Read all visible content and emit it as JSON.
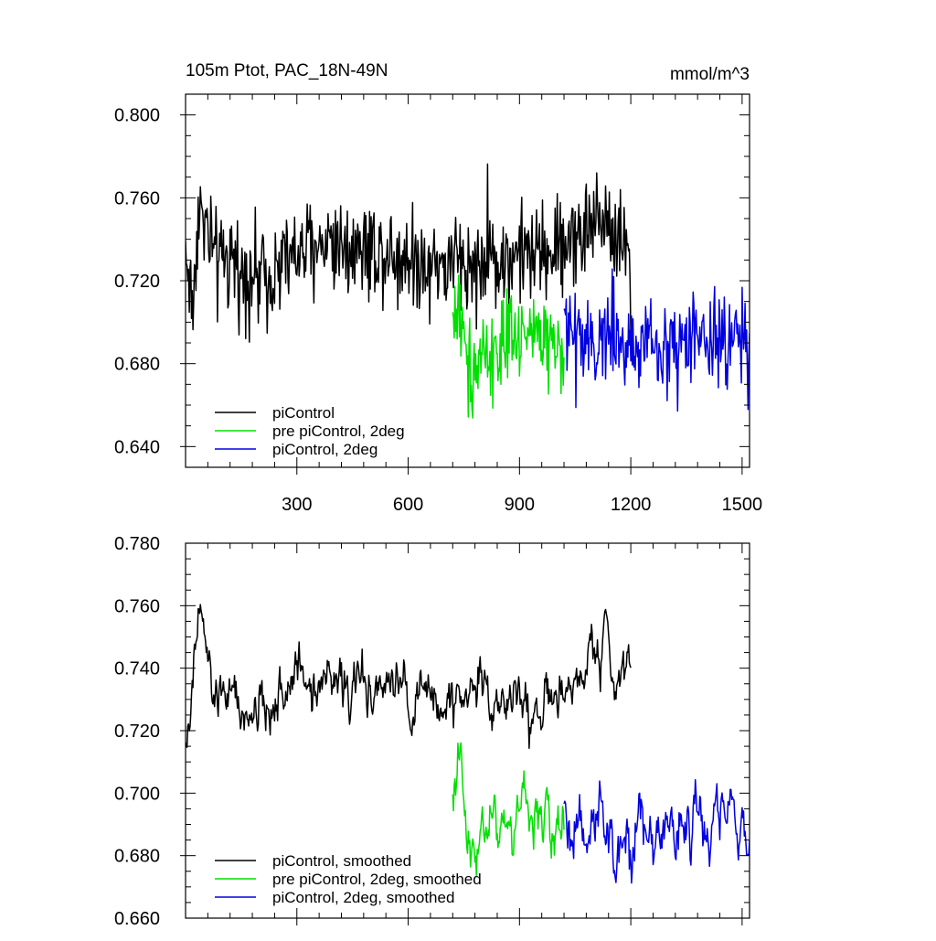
{
  "chart_data": [
    {
      "type": "line",
      "title": "105m Ptot, PAC_18N-49N",
      "units": "mmol/m^3",
      "xlim": [
        0,
        1520
      ],
      "ylim": [
        0.63,
        0.81
      ],
      "xticks": [
        300,
        600,
        900,
        1200,
        1500
      ],
      "xtick_labels": [
        "300",
        "600",
        "900",
        "1200",
        "1500"
      ],
      "yticks": [
        0.64,
        0.68,
        0.72,
        0.76,
        0.8
      ],
      "ytick_labels": [
        "0.640",
        "0.680",
        "0.720",
        "0.760",
        "0.800"
      ],
      "legend_position": "bottom-left",
      "series": [
        {
          "name": "piControl",
          "color": "#000000",
          "x_range": [
            0,
            1200
          ],
          "mean": 0.731,
          "amplitude": 0.012,
          "x_anchor": [
            0,
            20,
            30,
            40,
            80,
            200,
            380,
            700,
            900,
            1000,
            1050,
            1100,
            1130,
            1150,
            1180,
            1200
          ],
          "y_anchor": [
            0.735,
            0.705,
            0.745,
            0.755,
            0.73,
            0.722,
            0.74,
            0.728,
            0.732,
            0.735,
            0.742,
            0.748,
            0.752,
            0.745,
            0.74,
            0.73
          ]
        },
        {
          "name": "pre piControl, 2deg",
          "color": "#00e000",
          "x_range": [
            720,
            1020
          ],
          "mean": 0.69,
          "amplitude": 0.011,
          "x_anchor": [
            720,
            740,
            760,
            800,
            850,
            900,
            950,
            1000,
            1020
          ],
          "y_anchor": [
            0.7,
            0.712,
            0.675,
            0.683,
            0.69,
            0.688,
            0.696,
            0.692,
            0.688
          ]
        },
        {
          "name": "piControl, 2deg",
          "color": "#0000e0",
          "x_range": [
            1020,
            1520
          ],
          "mean": 0.69,
          "amplitude": 0.012,
          "x_anchor": [
            1020,
            1100,
            1150,
            1200,
            1300,
            1400,
            1450,
            1500,
            1520
          ],
          "y_anchor": [
            0.7,
            0.694,
            0.69,
            0.686,
            0.689,
            0.691,
            0.689,
            0.695,
            0.69
          ]
        }
      ]
    },
    {
      "type": "line",
      "xlim": [
        0,
        1520
      ],
      "ylim": [
        0.66,
        0.78
      ],
      "xticks": [
        300,
        600,
        900,
        1200,
        1500
      ],
      "yticks": [
        0.66,
        0.68,
        0.7,
        0.72,
        0.74,
        0.76,
        0.78
      ],
      "ytick_labels": [
        "0.660",
        "0.680",
        "0.700",
        "0.720",
        "0.740",
        "0.760",
        "0.780"
      ],
      "legend_position": "bottom-left",
      "series": [
        {
          "name": "piControl, smoothed",
          "color": "#000000",
          "x_range": [
            0,
            1200
          ],
          "mean": 0.731,
          "amplitude": 0.006,
          "x_anchor": [
            0,
            10,
            25,
            40,
            60,
            80,
            100,
            150,
            200,
            300,
            380,
            500,
            700,
            800,
            900,
            1000,
            1050,
            1100,
            1140,
            1160,
            1180,
            1200
          ],
          "y_anchor": [
            0.72,
            0.716,
            0.745,
            0.758,
            0.74,
            0.728,
            0.733,
            0.724,
            0.722,
            0.74,
            0.735,
            0.733,
            0.728,
            0.735,
            0.726,
            0.728,
            0.735,
            0.745,
            0.748,
            0.735,
            0.75,
            0.74
          ]
        },
        {
          "name": "pre piControl, 2deg, smoothed",
          "color": "#00e000",
          "x_range": [
            720,
            1020
          ],
          "mean": 0.69,
          "amplitude": 0.007,
          "x_anchor": [
            720,
            735,
            745,
            760,
            790,
            830,
            880,
            930,
            970,
            1000,
            1020
          ],
          "y_anchor": [
            0.696,
            0.72,
            0.7,
            0.678,
            0.69,
            0.694,
            0.69,
            0.696,
            0.688,
            0.692,
            0.69
          ]
        },
        {
          "name": "piControl, 2deg, smoothed",
          "color": "#0000e0",
          "x_range": [
            1020,
            1520
          ],
          "mean": 0.69,
          "amplitude": 0.008,
          "x_anchor": [
            1020,
            1100,
            1150,
            1200,
            1300,
            1400,
            1450,
            1500,
            1520
          ],
          "y_anchor": [
            0.692,
            0.694,
            0.688,
            0.684,
            0.686,
            0.69,
            0.695,
            0.69,
            0.693
          ]
        }
      ]
    }
  ]
}
